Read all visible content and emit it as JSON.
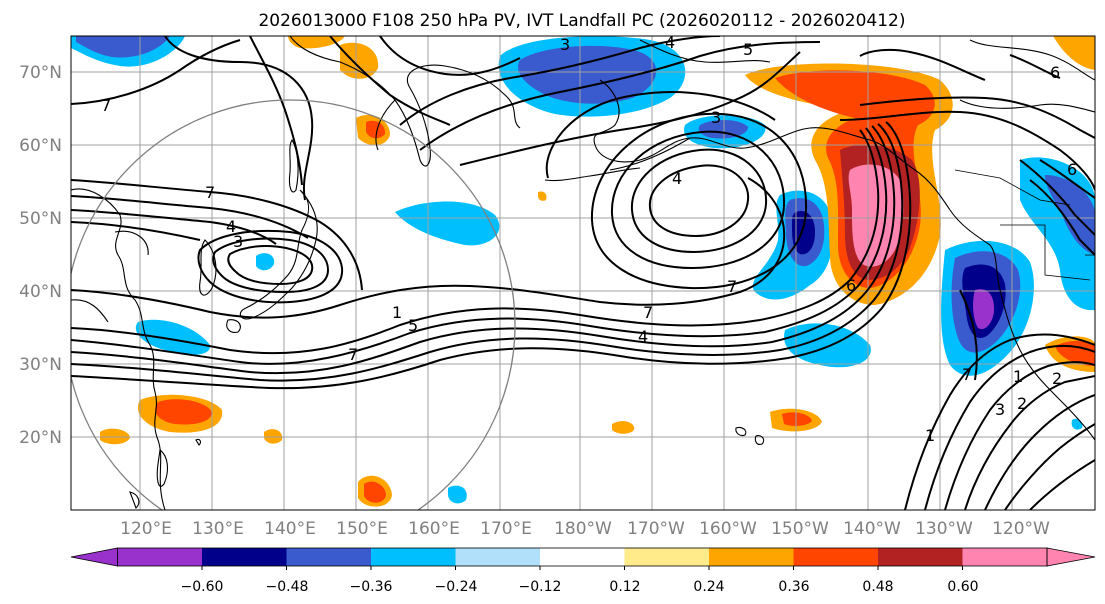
{
  "figure": {
    "title": "2026013000 F108 250 hPa PV, IVT Landfall PC (2026020112 - 2026020412)"
  },
  "map": {
    "lat_labels": [
      "70°N",
      "60°N",
      "50°N",
      "40°N",
      "30°N",
      "20°N"
    ],
    "lon_labels": [
      "120°E",
      "130°E",
      "140°E",
      "150°E",
      "160°E",
      "170°E",
      "180°W",
      "170°W",
      "160°W",
      "150°W",
      "140°W",
      "130°W",
      "120°W"
    ],
    "pv_contour_labels": [
      {
        "text": "7"
      },
      {
        "text": "7"
      },
      {
        "text": "4"
      },
      {
        "text": "3"
      },
      {
        "text": "1"
      },
      {
        "text": "5"
      },
      {
        "text": "7"
      },
      {
        "text": "3"
      },
      {
        "text": "4"
      },
      {
        "text": "5"
      },
      {
        "text": "3"
      },
      {
        "text": "4"
      },
      {
        "text": "7"
      },
      {
        "text": "4"
      },
      {
        "text": "7"
      },
      {
        "text": "6"
      },
      {
        "text": "6"
      },
      {
        "text": "6"
      },
      {
        "text": "1"
      },
      {
        "text": "3"
      },
      {
        "text": "2"
      },
      {
        "text": "1"
      },
      {
        "text": "2"
      },
      {
        "text": "7"
      }
    ]
  },
  "colorbar": {
    "tick_labels": [
      "−0.60",
      "−0.48",
      "−0.36",
      "−0.24",
      "−0.12",
      "0.12",
      "0.24",
      "0.36",
      "0.48",
      "0.60"
    ],
    "colors": [
      "#9932CC",
      "#00008B",
      "#3A5BCD",
      "#00BFFF",
      "#B0E0FA",
      "#FFFFFF",
      "#FFEB8A",
      "#FFA500",
      "#FF4500",
      "#B22222",
      "#FF85B0"
    ]
  }
}
